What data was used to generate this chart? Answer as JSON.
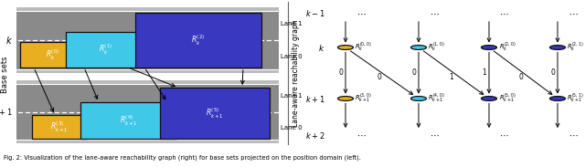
{
  "fig_width": 6.4,
  "fig_height": 1.83,
  "dpi": 100,
  "caption": "Fig. 2: Visualization of the lane-aware reachability graph (right) for base sets projected on the position domain (left).",
  "colors": {
    "yellow": "#E8B020",
    "cyan": "#40C8E8",
    "blue": "#3838C0",
    "dark": "#222222",
    "road_gray": "#8A8A8A",
    "road_edge": "#B0B0B0",
    "white": "#FFFFFF",
    "black": "#000000"
  }
}
